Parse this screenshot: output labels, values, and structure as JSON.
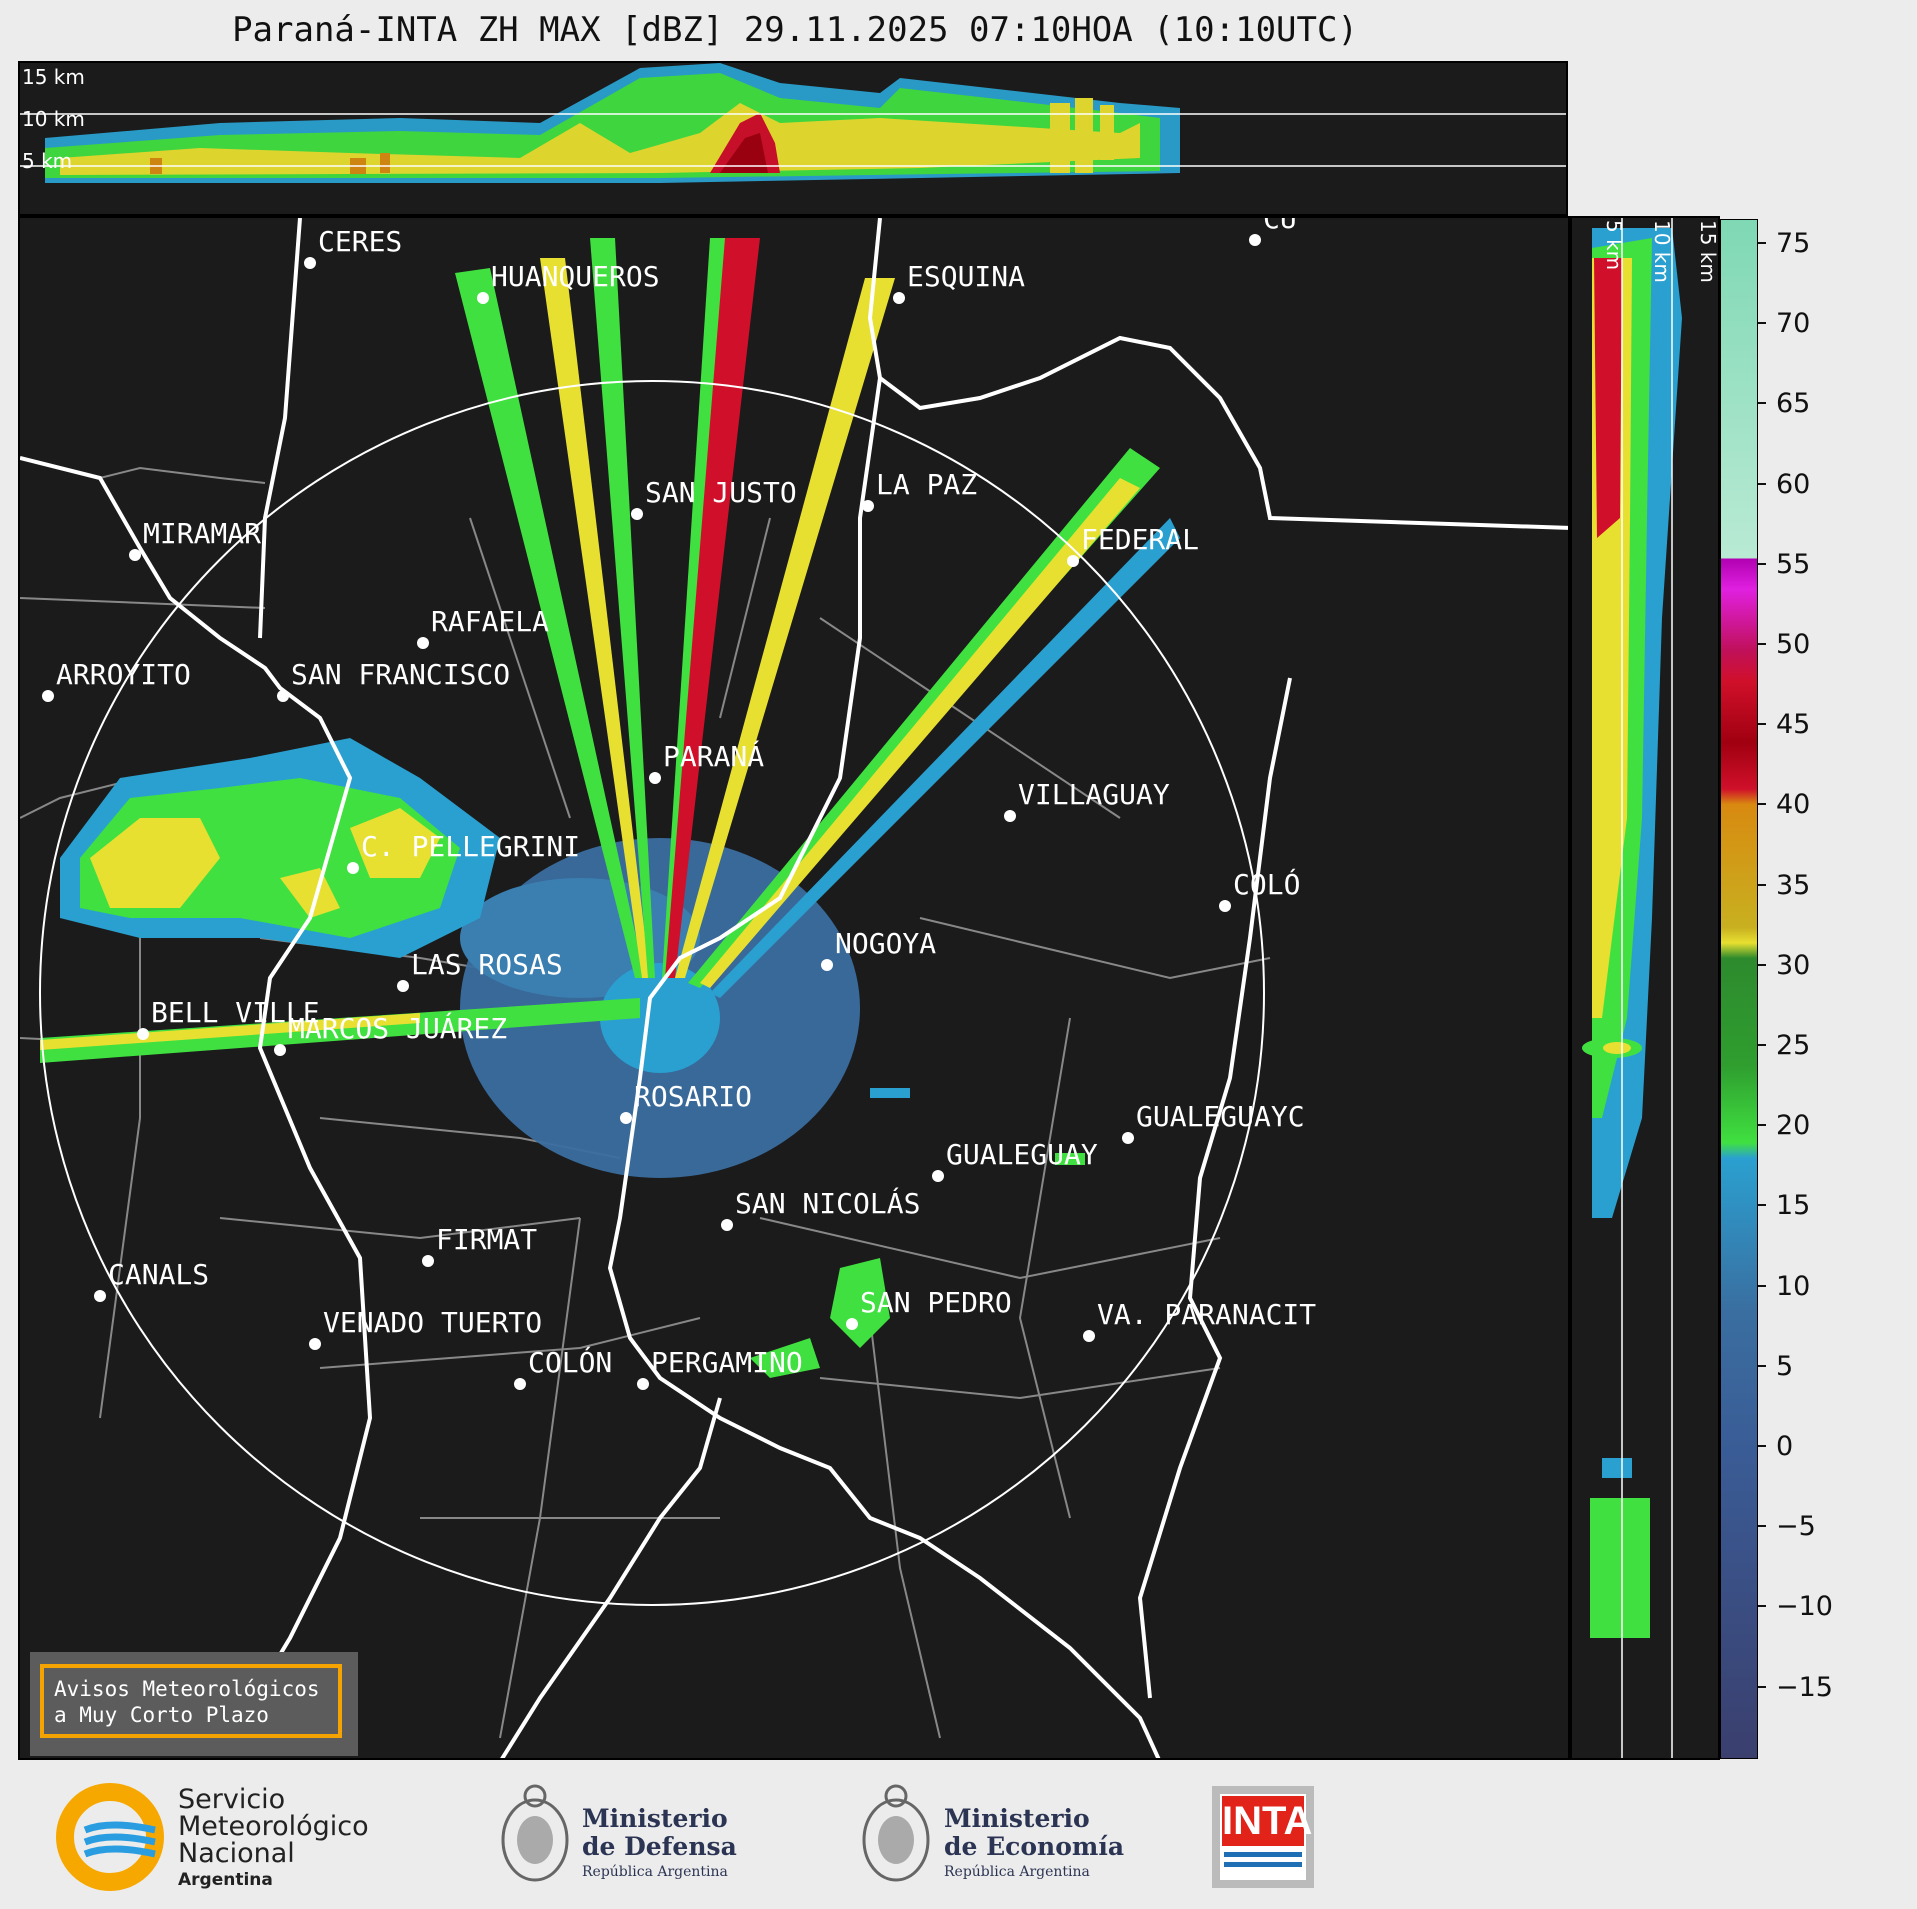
{
  "title": "Paraná-INTA ZH MAX [dBZ] 29.11.2025 07:10HOA (10:10UTC)",
  "top_panel": {
    "altitude_labels": [
      "15 km",
      "10 km",
      "5 km"
    ]
  },
  "side_panel": {
    "altitude_labels": [
      "5 km",
      "10 km",
      "15 km"
    ]
  },
  "map": {
    "cities": [
      {
        "name": "CERES"
      },
      {
        "name": "HUANQUEROS"
      },
      {
        "name": "ESQUINA"
      },
      {
        "name": "CU"
      },
      {
        "name": "SAN JUSTO"
      },
      {
        "name": "LA PAZ"
      },
      {
        "name": "MIRAMAR"
      },
      {
        "name": "FEDERAL"
      },
      {
        "name": "RAFAELA"
      },
      {
        "name": "ARROYITO"
      },
      {
        "name": "SAN FRANCISCO"
      },
      {
        "name": "PARANÁ"
      },
      {
        "name": "VILLAGUAY"
      },
      {
        "name": "C. PELLEGRINI"
      },
      {
        "name": "COLÓ"
      },
      {
        "name": "NOGOYA"
      },
      {
        "name": "LAS ROSAS"
      },
      {
        "name": "BELL VILLE"
      },
      {
        "name": "MARCOS JUÁREZ"
      },
      {
        "name": "ROSARIO"
      },
      {
        "name": "GUALEGUAYC"
      },
      {
        "name": "GUALEGUAY"
      },
      {
        "name": "SAN NICOLÁS"
      },
      {
        "name": "FIRMAT"
      },
      {
        "name": "CANALS"
      },
      {
        "name": "SAN PEDRO"
      },
      {
        "name": "VENADO TUERTO"
      },
      {
        "name": "VA. PARANACIT"
      },
      {
        "name": "COLÓN"
      },
      {
        "name": "PERGAMINO"
      }
    ]
  },
  "colorbar": {
    "ticks": [
      "75",
      "70",
      "65",
      "60",
      "55",
      "50",
      "45",
      "40",
      "35",
      "30",
      "25",
      "20",
      "15",
      "10",
      "5",
      "0",
      "−5",
      "−10",
      "−15"
    ],
    "colors": {
      "very_high": "#7fd8b4",
      "white": "#ffffff",
      "magenta": "#b000b0",
      "red": "#d0102a",
      "orange": "#d88a10",
      "yellow": "#e8e030",
      "green": "#2d8a2d",
      "light_green": "#40e040",
      "cyan": "#2aa0d0",
      "steel": "#3a6ea0",
      "navy": "#3a3f6e"
    }
  },
  "notice": {
    "line1": "Avisos Meteorológicos",
    "line2": "a Muy Corto Plazo"
  },
  "logos": {
    "smn": {
      "line1": "Servicio",
      "line2": "Meteorológico",
      "line3": "Nacional",
      "line4": "Argentina"
    },
    "defensa": {
      "line1": "Ministerio",
      "line2": "de Defensa",
      "line3": "República Argentina"
    },
    "economia": {
      "line1": "Ministerio",
      "line2": "de Economía",
      "line3": "República Argentina"
    },
    "inta": {
      "text": "INTA"
    }
  }
}
